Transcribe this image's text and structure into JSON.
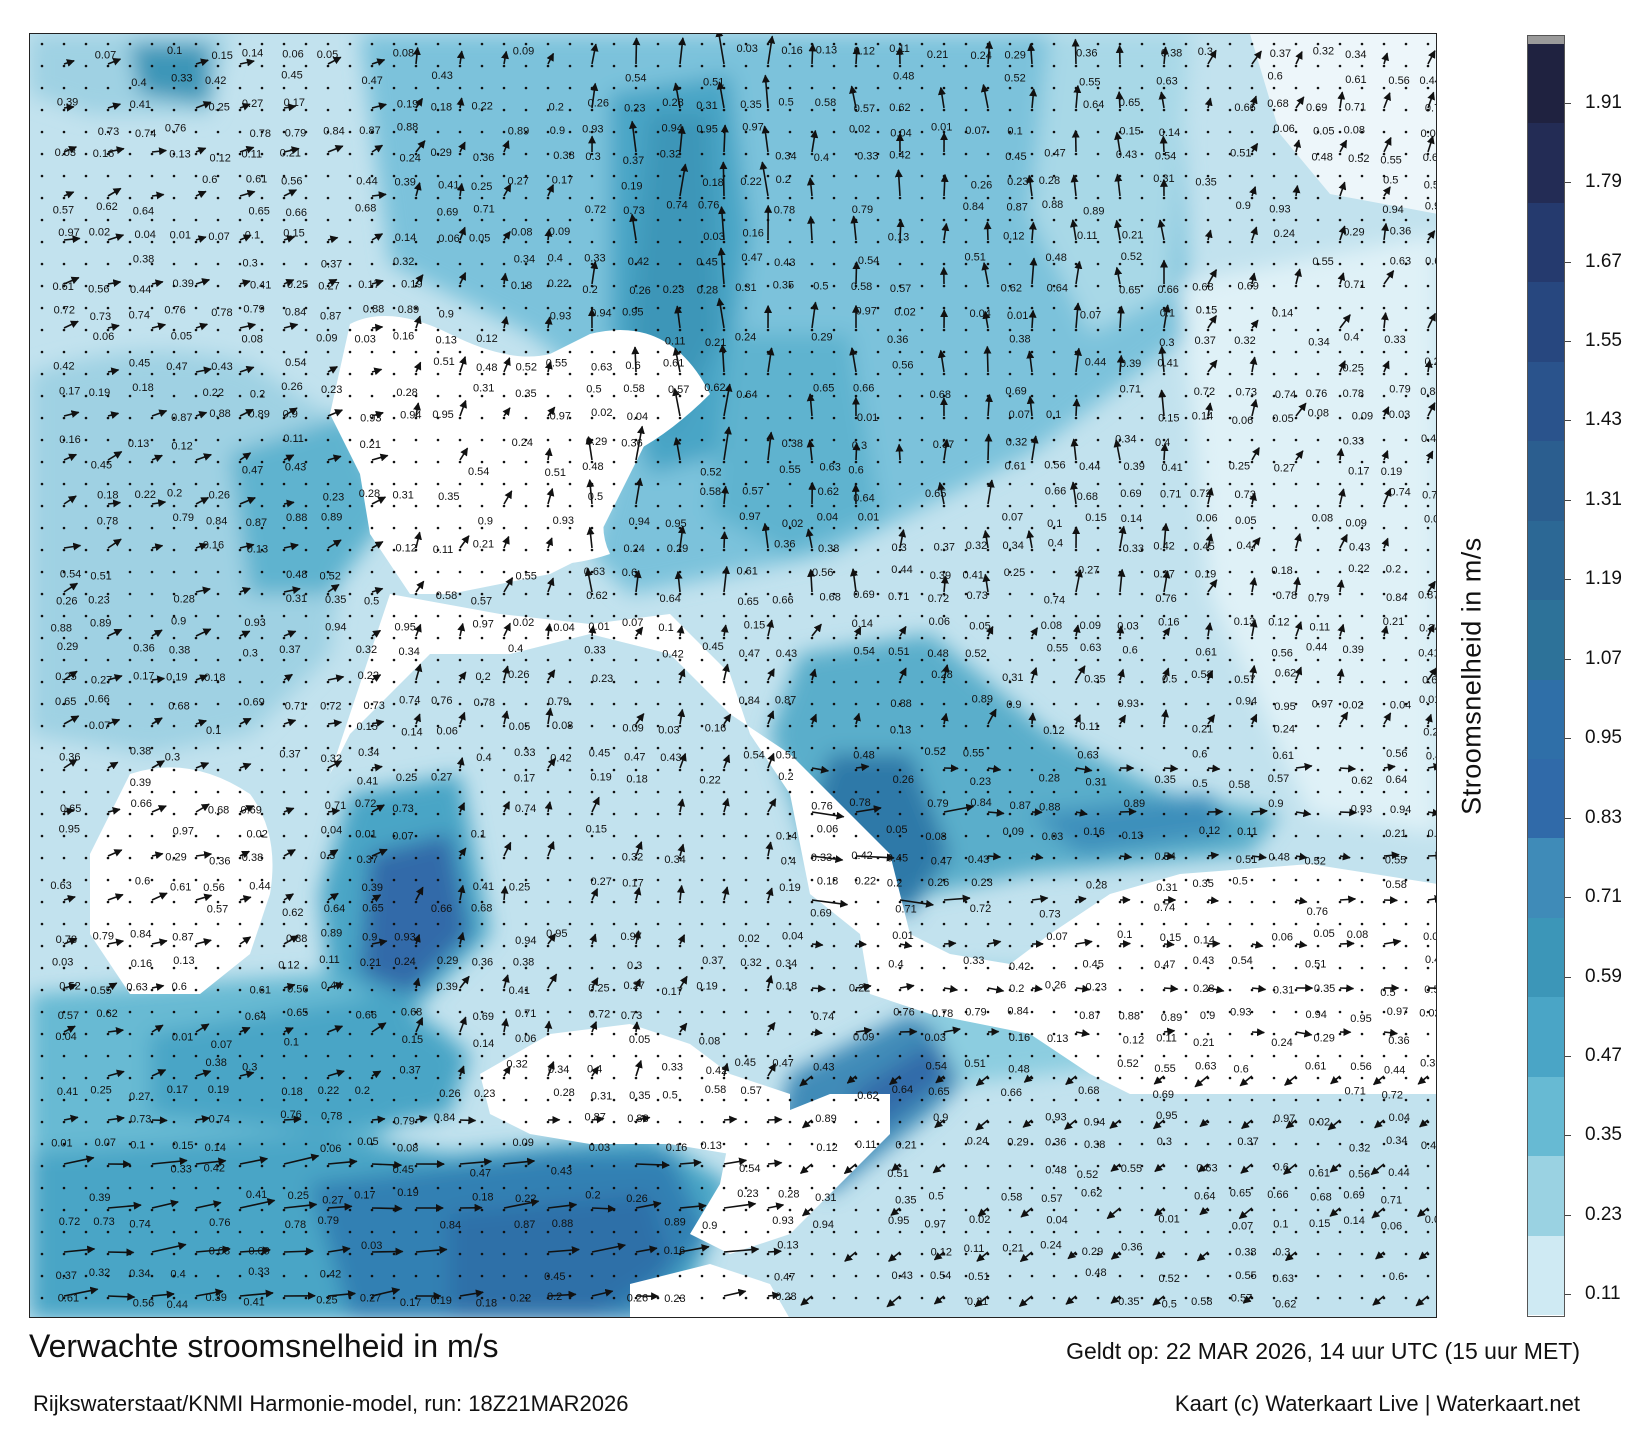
{
  "header": {
    "title": "Verwachte stroomsnelheid in m/s",
    "subtitle": "Rijkswaterstaat/KNMI Harmonie-model, run: 18Z21MAR2026",
    "valid_time": "Geldt op: 22 MAR 2026, 14 uur UTC (15 uur MET)",
    "credit": "Kaart (c) Waterkaart Live | Waterkaart.net"
  },
  "colorbar": {
    "title": "Stroomsnelheid in m/s",
    "ticks": [
      "1.91",
      "1.79",
      "1.67",
      "1.55",
      "1.43",
      "1.31",
      "1.19",
      "1.07",
      "0.95",
      "0.83",
      "0.71",
      "0.59",
      "0.47",
      "0.35",
      "0.23",
      "0.11"
    ],
    "colors": [
      "#1f2240",
      "#232c55",
      "#253a6e",
      "#27477f",
      "#2a538c",
      "#2b5e8f",
      "#2c6895",
      "#2d7299",
      "#2f6fa8",
      "#306aa9",
      "#3f8bb8",
      "#3c96b8",
      "#4aa5c6",
      "#67bad3",
      "#9ad2e2",
      "#cfeaf3"
    ],
    "overflow_color": "#9a9a9a"
  },
  "map_labels": [
    "0.07",
    "0.1",
    "0.15",
    "0.14",
    "0.06",
    "0.05",
    "0.08",
    "0.09",
    "0.03",
    "0.16",
    "0.13",
    "0.12",
    "0.11",
    "0.21",
    "0.24",
    "0.29",
    "0.36",
    "0.38",
    "0.3",
    "0.37",
    "0.32",
    "0.34",
    "0.4",
    "0.33",
    "0.42",
    "0.45",
    "0.47",
    "0.43",
    "0.54",
    "0.51",
    "0.48",
    "0.52",
    "0.55",
    "0.63",
    "0.6",
    "0.61",
    "0.56",
    "0.44",
    "0.39",
    "0.41",
    "0.25",
    "0.27",
    "0.17",
    "0.19",
    "0.18",
    "0.22",
    "0.2",
    "0.26",
    "0.23",
    "0.28",
    "0.31",
    "0.35",
    "0.5",
    "0.58",
    "0.57",
    "0.62",
    "0.64",
    "0.65",
    "0.66",
    "0.68",
    "0.69",
    "0.71",
    "0.72",
    "0.73",
    "0.74",
    "0.76",
    "0.78",
    "0.79",
    "0.84",
    "0.87",
    "0.88",
    "0.89",
    "0.9",
    "0.93",
    "0.94",
    "0.95",
    "0.97",
    "0.02",
    "0.04",
    "0.01"
  ]
}
